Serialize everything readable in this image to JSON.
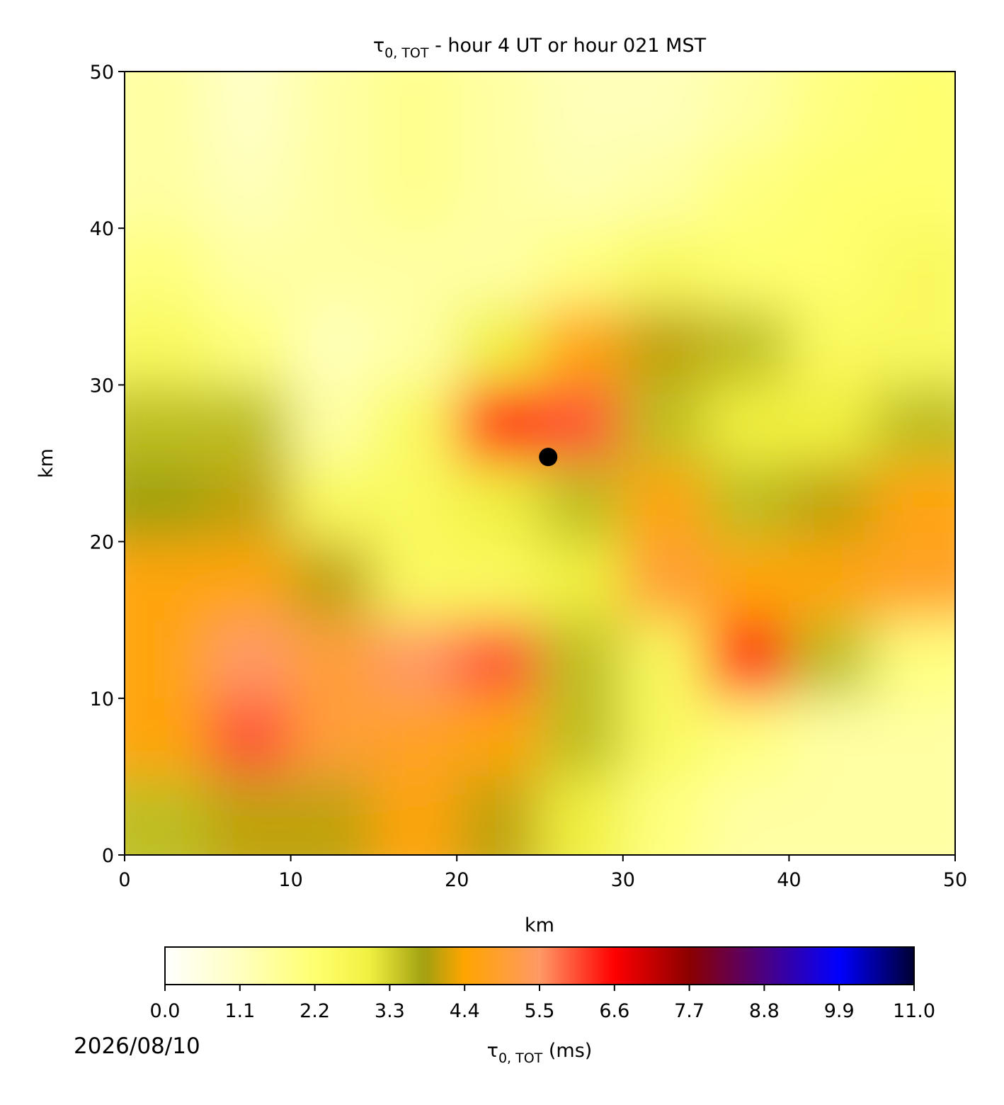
{
  "chart_data": {
    "type": "heatmap",
    "title_symbol": "τ",
    "title_subscript": "0, TOT",
    "title_rest": " - hour 4 UT or hour 021 MST",
    "xlabel": "km",
    "ylabel": "km",
    "xlim": [
      0,
      50
    ],
    "ylim": [
      0,
      50
    ],
    "xticks": [
      0,
      10,
      20,
      30,
      40,
      50
    ],
    "yticks": [
      0,
      10,
      20,
      30,
      40,
      50
    ],
    "z": [
      [
        1.5,
        1.0,
        1.5,
        1.8,
        1.5,
        1.2,
        1.2,
        1.5,
        2.0,
        2.2
      ],
      [
        1.5,
        1.2,
        1.5,
        1.8,
        1.5,
        1.3,
        1.5,
        2.0,
        2.2,
        2.2
      ],
      [
        2.0,
        1.5,
        1.5,
        1.5,
        1.5,
        2.0,
        2.5,
        2.2,
        2.2,
        2.5
      ],
      [
        2.5,
        2.0,
        1.2,
        1.5,
        3.0,
        4.5,
        4.0,
        3.5,
        2.5,
        2.5
      ],
      [
        3.5,
        3.5,
        1.5,
        2.5,
        6.5,
        6.0,
        3.5,
        3.0,
        3.0,
        3.5
      ],
      [
        3.8,
        4.0,
        2.5,
        2.5,
        3.0,
        3.5,
        4.5,
        3.5,
        4.0,
        4.5
      ],
      [
        4.5,
        4.5,
        4.0,
        2.5,
        2.5,
        3.0,
        5.0,
        4.5,
        4.5,
        4.8
      ],
      [
        4.5,
        5.5,
        5.0,
        5.5,
        6.0,
        3.5,
        2.5,
        6.5,
        3.5,
        2.0
      ],
      [
        4.5,
        6.0,
        5.0,
        4.8,
        4.5,
        3.5,
        2.5,
        2.0,
        1.5,
        1.5
      ],
      [
        3.5,
        4.0,
        4.0,
        4.5,
        4.0,
        3.0,
        2.0,
        1.5,
        1.5,
        1.5
      ]
    ],
    "marker": {
      "x": 25.5,
      "y": 25.4,
      "color": "#000000"
    },
    "colormap": [
      [
        0,
        "#ffffff"
      ],
      [
        1.1,
        "#ffffc0"
      ],
      [
        2.2,
        "#ffff70"
      ],
      [
        3.0,
        "#f0f040"
      ],
      [
        3.8,
        "#a0a010"
      ],
      [
        4.4,
        "#ffa500"
      ],
      [
        5.5,
        "#ff9966"
      ],
      [
        6.6,
        "#ff0000"
      ],
      [
        7.7,
        "#8b0000"
      ],
      [
        8.8,
        "#4b0082"
      ],
      [
        9.9,
        "#0000ff"
      ],
      [
        11.0,
        "#000033"
      ]
    ],
    "colorbar": {
      "label_symbol": "τ",
      "label_subscript": "0, TOT",
      "label_rest": " (ms)",
      "lim": [
        0,
        11.0
      ],
      "ticks": [
        {
          "value": 0,
          "label": "0.0"
        },
        1.1,
        2.2,
        3.3,
        4.4,
        5.5,
        6.6,
        7.7,
        8.8,
        9.9,
        {
          "value": 11,
          "label": "11.0"
        }
      ]
    },
    "footer_text": "2026/08/10"
  }
}
